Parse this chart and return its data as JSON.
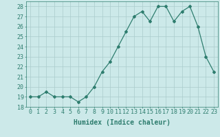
{
  "x": [
    0,
    1,
    2,
    3,
    4,
    5,
    6,
    7,
    8,
    9,
    10,
    11,
    12,
    13,
    14,
    15,
    16,
    17,
    18,
    19,
    20,
    21,
    22,
    23
  ],
  "y": [
    19,
    19,
    19.5,
    19,
    19,
    19,
    18.5,
    19,
    20,
    21.5,
    22.5,
    24,
    25.5,
    27,
    27.5,
    26.5,
    28,
    28,
    26.5,
    27.5,
    28,
    26,
    23,
    21.5
  ],
  "line_color": "#2e7d6e",
  "marker": "D",
  "marker_size": 2,
  "bg_color": "#cce9e9",
  "grid_color": "#aacccc",
  "xlabel": "Humidex (Indice chaleur)",
  "xlim": [
    -0.5,
    23.5
  ],
  "ylim": [
    18,
    28.5
  ],
  "yticks": [
    18,
    19,
    20,
    21,
    22,
    23,
    24,
    25,
    26,
    27,
    28
  ],
  "xticks": [
    0,
    1,
    2,
    3,
    4,
    5,
    6,
    7,
    8,
    9,
    10,
    11,
    12,
    13,
    14,
    15,
    16,
    17,
    18,
    19,
    20,
    21,
    22,
    23
  ],
  "tick_color": "#2e7d6e",
  "label_color": "#2e7d6e",
  "xlabel_fontsize": 7,
  "tick_fontsize": 6,
  "lw": 0.9
}
